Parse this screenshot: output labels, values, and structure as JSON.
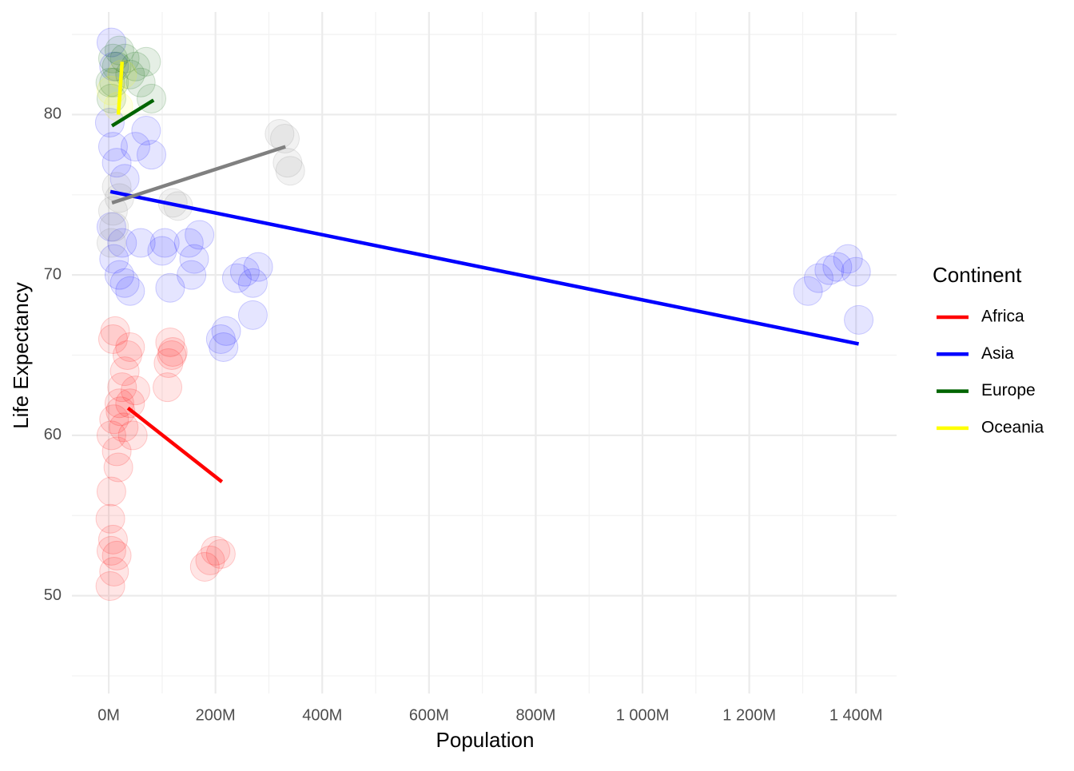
{
  "chart_data": {
    "type": "scatter",
    "x_label": "Population",
    "y_label": "Life Expectancy",
    "legend_title": "Continent",
    "legend": "right",
    "grid": true,
    "xlim": [
      -69000000,
      1476000000
    ],
    "ylim": [
      43.9,
      86.4
    ],
    "xticks": [
      {
        "value": 0,
        "label": "0M"
      },
      {
        "value": 200000000,
        "label": "200M"
      },
      {
        "value": 400000000,
        "label": "400M"
      },
      {
        "value": 600000000,
        "label": "600M"
      },
      {
        "value": 800000000,
        "label": "800M"
      },
      {
        "value": 1000000000,
        "label": "1 000M"
      },
      {
        "value": 1200000000,
        "label": "1 200M"
      },
      {
        "value": 1400000000,
        "label": "1 400M"
      }
    ],
    "x_minor_ticks": [
      100000000,
      300000000,
      500000000,
      700000000,
      900000000,
      1100000000,
      1300000000
    ],
    "yticks": [
      50,
      60,
      70,
      80
    ],
    "y_minor_ticks": [
      45,
      55,
      65,
      75,
      85
    ],
    "series": [
      {
        "name": "Africa",
        "color": "#ff0000",
        "x": [
          5000000,
          10000000,
          15000000,
          20000000,
          25000000,
          30000000,
          35000000,
          40000000,
          8000000,
          12000000,
          5000000,
          18000000,
          28000000,
          45000000,
          22000000,
          3000000,
          5000000,
          8000000,
          10000000,
          3000000,
          15000000,
          180000000,
          190000000,
          200000000,
          210000000,
          115000000,
          118000000,
          110000000,
          112000000,
          120000000,
          40000000,
          50000000
        ],
        "values": [
          60,
          61,
          59,
          62,
          63,
          64,
          65,
          62,
          66,
          66.5,
          56.5,
          58,
          60.5,
          60,
          61.5,
          50.6,
          52.8,
          53.5,
          51.5,
          54.8,
          52.5,
          51.8,
          52.2,
          52.8,
          52.6,
          65.8,
          65.0,
          63.0,
          64.5,
          65.2,
          65.5,
          62.8
        ],
        "trend": {
          "x": [
            36000000,
            212000000
          ],
          "y": [
            61.7,
            57.1
          ]
        }
      },
      {
        "name": "Asia",
        "color": "#0000ff",
        "x": [
          5000000,
          10000000,
          2000000,
          8000000,
          15000000,
          30000000,
          50000000,
          70000000,
          80000000,
          10000000,
          20000000,
          30000000,
          25000000,
          5000000,
          40000000,
          60000000,
          100000000,
          105000000,
          115000000,
          150000000,
          160000000,
          170000000,
          155000000,
          240000000,
          255000000,
          270000000,
          280000000,
          270000000,
          210000000,
          220000000,
          215000000,
          1310000000,
          1330000000,
          1350000000,
          1365000000,
          1385000000,
          1400000000,
          1405000000
        ],
        "values": [
          84.5,
          83,
          79.5,
          78,
          77,
          76,
          78,
          79,
          77.5,
          71,
          70,
          69.5,
          72,
          73,
          69,
          72,
          71.5,
          72,
          69.2,
          72,
          71,
          72.5,
          70,
          69.8,
          70.2,
          69.5,
          70.5,
          67.5,
          66,
          66.5,
          65.5,
          69,
          69.8,
          70.3,
          70.5,
          71,
          70.2,
          67.2
        ],
        "trend": {
          "x": [
            3000000,
            1405000000
          ],
          "y": [
            75.2,
            65.7
          ]
        }
      },
      {
        "name": "Europe",
        "color": "#006400",
        "x": [
          5000000,
          10000000,
          15000000,
          20000000,
          30000000,
          40000000,
          50000000,
          60000000,
          70000000,
          80000000,
          3000000,
          8000000
        ],
        "values": [
          81,
          82,
          83,
          84,
          83.5,
          82.5,
          83,
          82,
          83.3,
          81,
          82,
          83.5
        ],
        "trend": {
          "x": [
            6000000,
            84000000
          ],
          "y": [
            79.3,
            80.9
          ]
        }
      },
      {
        "name": "Oceania",
        "color": "#ffff00",
        "x": [
          18000000,
          25000000,
          5000000
        ],
        "values": [
          80.5,
          82.5,
          81.5
        ],
        "trend": {
          "x": [
            18000000,
            25000000
          ],
          "y": [
            80.0,
            83.3
          ]
        }
      },
      {
        "color": "#808080",
        "x": [
          320000000,
          330000000,
          340000000,
          335000000,
          120000000,
          130000000,
          5000000,
          10000000,
          15000000,
          8000000,
          20000000
        ],
        "values": [
          78.8,
          78.5,
          76.5,
          77,
          74.5,
          74.3,
          72,
          73,
          75.5,
          74,
          74.8
        ],
        "trend": {
          "x": [
            6000000,
            331000000
          ],
          "y": [
            74.5,
            78.0
          ]
        }
      }
    ]
  }
}
